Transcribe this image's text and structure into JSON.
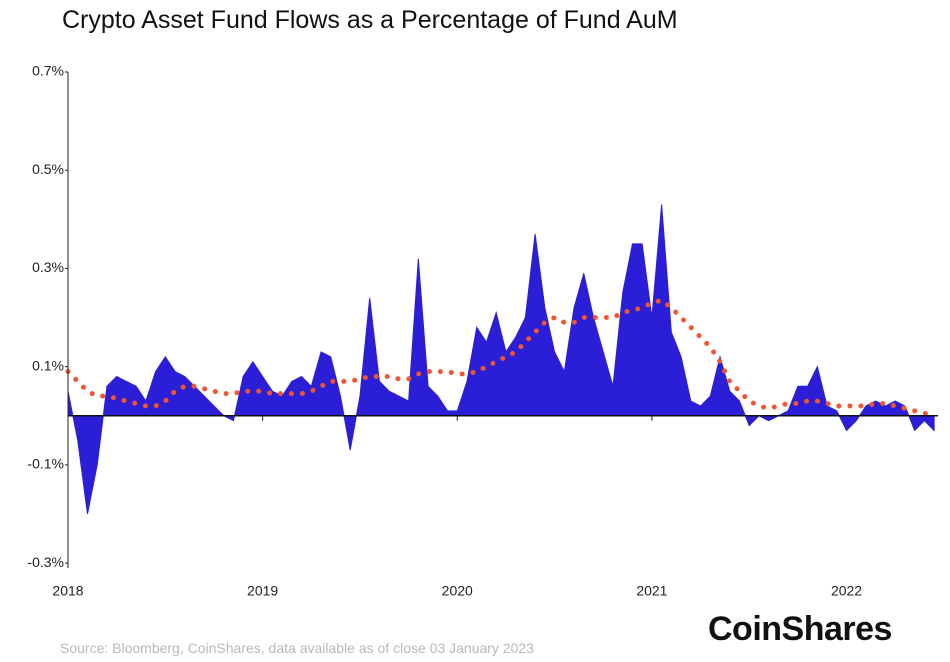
{
  "chart_data": {
    "type": "area",
    "title": "Crypto Asset Fund Flows as a Percentage of Fund AuM",
    "source": "Source: Bloomberg, CoinShares, data available as of close 03 January 2023",
    "brand": "CoinShares",
    "x": [
      2018.0,
      2018.05,
      2018.1,
      2018.15,
      2018.2,
      2018.25,
      2018.3,
      2018.35,
      2018.4,
      2018.45,
      2018.5,
      2018.55,
      2018.6,
      2018.65,
      2018.7,
      2018.75,
      2018.8,
      2018.85,
      2018.9,
      2018.95,
      2019.0,
      2019.05,
      2019.1,
      2019.15,
      2019.2,
      2019.25,
      2019.3,
      2019.35,
      2019.4,
      2019.45,
      2019.5,
      2019.55,
      2019.6,
      2019.65,
      2019.7,
      2019.75,
      2019.8,
      2019.85,
      2019.9,
      2019.95,
      2020.0,
      2020.05,
      2020.1,
      2020.15,
      2020.2,
      2020.25,
      2020.3,
      2020.35,
      2020.4,
      2020.45,
      2020.5,
      2020.55,
      2020.6,
      2020.65,
      2020.7,
      2020.75,
      2020.8,
      2020.85,
      2020.9,
      2020.95,
      2021.0,
      2021.05,
      2021.1,
      2021.15,
      2021.2,
      2021.25,
      2021.3,
      2021.35,
      2021.4,
      2021.45,
      2021.5,
      2021.55,
      2021.6,
      2021.65,
      2021.7,
      2021.75,
      2021.8,
      2021.85,
      2021.9,
      2021.95,
      2022.0,
      2022.05,
      2022.1,
      2022.15,
      2022.2,
      2022.25,
      2022.3,
      2022.35,
      2022.4,
      2022.45
    ],
    "series": [
      {
        "color": "#2a1fd6",
        "values": [
          0.05,
          -0.05,
          -0.2,
          -0.1,
          0.06,
          0.08,
          0.07,
          0.06,
          0.03,
          0.09,
          0.12,
          0.09,
          0.08,
          0.06,
          0.04,
          0.02,
          0.0,
          -0.01,
          0.08,
          0.11,
          0.08,
          0.05,
          0.04,
          0.07,
          0.08,
          0.06,
          0.13,
          0.12,
          0.04,
          -0.07,
          0.04,
          0.24,
          0.07,
          0.05,
          0.04,
          0.03,
          0.32,
          0.06,
          0.04,
          0.01,
          0.01,
          0.07,
          0.18,
          0.15,
          0.21,
          0.13,
          0.16,
          0.2,
          0.37,
          0.22,
          0.13,
          0.09,
          0.22,
          0.29,
          0.2,
          0.13,
          0.06,
          0.25,
          0.35,
          0.35,
          0.2,
          0.43,
          0.17,
          0.12,
          0.03,
          0.02,
          0.04,
          0.12,
          0.05,
          0.03,
          -0.02,
          0.0,
          -0.01,
          0.0,
          0.01,
          0.06,
          0.06,
          0.1,
          0.02,
          0.01,
          -0.03,
          -0.01,
          0.02,
          0.03,
          0.02,
          0.03,
          0.02,
          -0.03,
          -0.01,
          -0.03
        ]
      },
      {
        "color": "#f2542d",
        "values": [
          0.09,
          0.07,
          0.05,
          0.04,
          0.04,
          0.035,
          0.03,
          0.025,
          0.02,
          0.02,
          0.03,
          0.05,
          0.06,
          0.06,
          0.055,
          0.05,
          0.045,
          0.045,
          0.05,
          0.05,
          0.05,
          0.045,
          0.045,
          0.045,
          0.045,
          0.05,
          0.06,
          0.07,
          0.07,
          0.07,
          0.075,
          0.08,
          0.08,
          0.08,
          0.075,
          0.075,
          0.085,
          0.09,
          0.09,
          0.09,
          0.085,
          0.085,
          0.09,
          0.1,
          0.11,
          0.12,
          0.13,
          0.15,
          0.17,
          0.19,
          0.2,
          0.19,
          0.19,
          0.2,
          0.2,
          0.2,
          0.2,
          0.21,
          0.215,
          0.22,
          0.23,
          0.235,
          0.22,
          0.2,
          0.18,
          0.16,
          0.14,
          0.11,
          0.07,
          0.05,
          0.03,
          0.02,
          0.015,
          0.02,
          0.025,
          0.025,
          0.03,
          0.03,
          0.025,
          0.02,
          0.02,
          0.02,
          0.02,
          0.025,
          0.025,
          0.02,
          0.015,
          0.01,
          0.005,
          0.0
        ]
      }
    ],
    "xlim": [
      2018,
      2022.47
    ],
    "xticks": [
      2018,
      2019,
      2020,
      2021,
      2022
    ],
    "ylim": [
      -0.31,
      0.7
    ],
    "yticks": [
      {
        "value": -0.3,
        "label": "-0.3%"
      },
      {
        "value": -0.1,
        "label": "-0.1%"
      },
      {
        "value": 0.1,
        "label": "0.1%"
      },
      {
        "value": 0.3,
        "label": "0.3%"
      },
      {
        "value": 0.5,
        "label": "0.5%"
      },
      {
        "value": 0.7,
        "label": "0.7%"
      }
    ],
    "grid": false
  }
}
